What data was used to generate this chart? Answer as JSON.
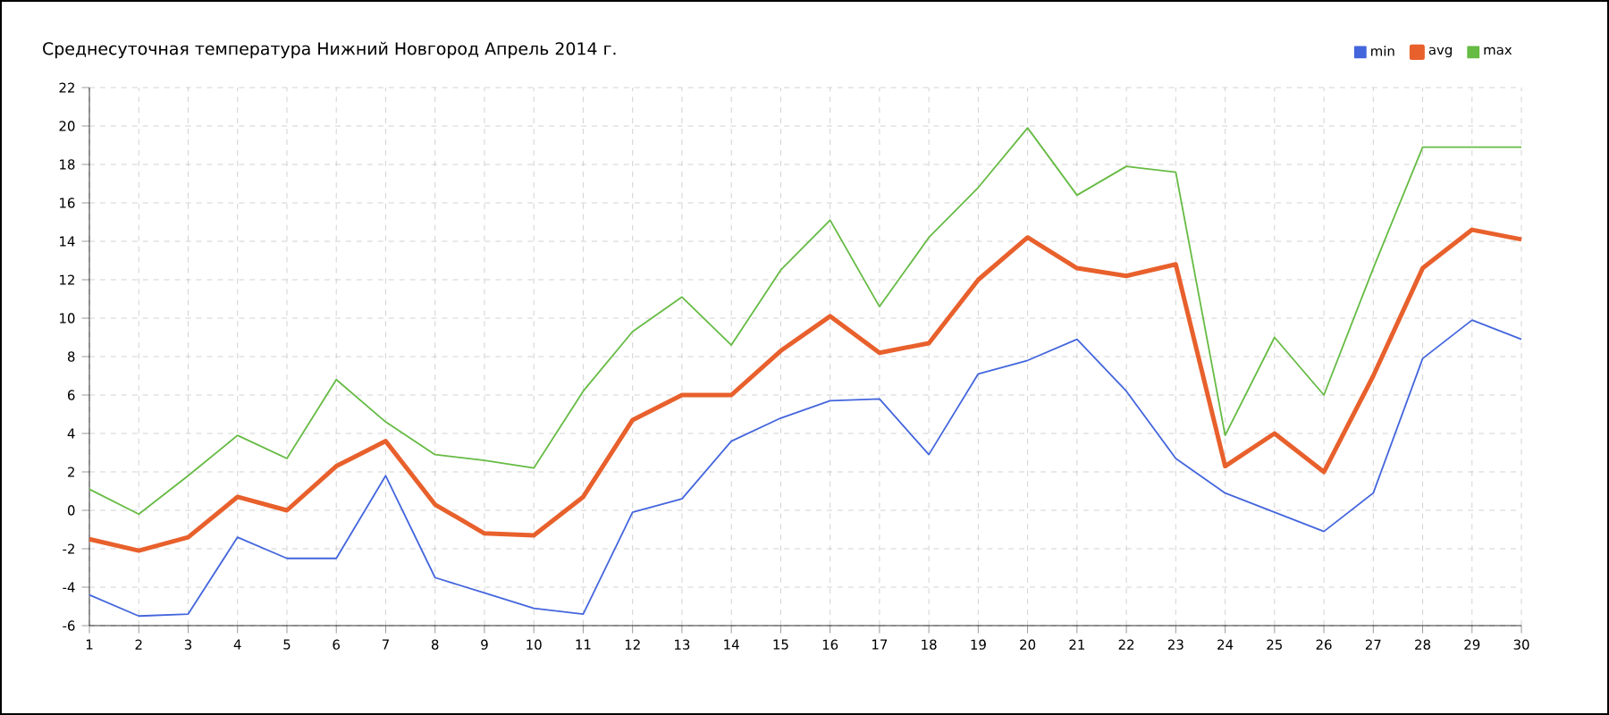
{
  "chart_data": {
    "type": "line",
    "title": "Среднесуточная температура Нижний Новгород  Апрель 2014 г.",
    "categories": [
      "1",
      "2",
      "3",
      "4",
      "5",
      "6",
      "7",
      "8",
      "9",
      "10",
      "11",
      "12",
      "13",
      "14",
      "15",
      "16",
      "17",
      "18",
      "19",
      "20",
      "21",
      "22",
      "23",
      "24",
      "25",
      "26",
      "27",
      "28",
      "29",
      "30"
    ],
    "series": [
      {
        "name": "min",
        "color": "#4466dd",
        "values": [
          -4.4,
          -5.5,
          -5.4,
          -1.4,
          -2.5,
          -2.5,
          1.8,
          -3.5,
          -4.3,
          -5.1,
          -5.4,
          -0.1,
          0.6,
          3.6,
          4.8,
          5.7,
          5.8,
          2.9,
          7.1,
          7.8,
          8.9,
          6.2,
          2.7,
          0.9,
          -0.1,
          -1.1,
          0.9,
          7.9,
          9.9,
          8.9
        ]
      },
      {
        "name": "avg",
        "color": "#e8602c",
        "values": [
          -1.5,
          -2.1,
          -1.4,
          0.7,
          0,
          2.3,
          3.6,
          0.3,
          -1.2,
          -1.3,
          0.7,
          4.7,
          6.0,
          6.0,
          8.3,
          10.1,
          8.2,
          8.7,
          12.0,
          14.2,
          12.6,
          12.2,
          12.8,
          2.3,
          4.0,
          2.0,
          7.0,
          12.6,
          14.6,
          14.1
        ]
      },
      {
        "name": "max",
        "color": "#66bb44",
        "values": [
          1.1,
          -0.2,
          1.8,
          3.9,
          2.7,
          6.8,
          4.6,
          2.9,
          2.6,
          2.2,
          6.2,
          9.3,
          11.1,
          8.6,
          12.5,
          15.1,
          10.6,
          14.2,
          16.8,
          19.9,
          16.4,
          17.9,
          17.6,
          3.9,
          9.0,
          6.0,
          12.6,
          18.9,
          18.9,
          18.9
        ]
      }
    ],
    "ylim": [
      -6,
      22
    ],
    "yticks": [
      -6,
      -4,
      -2,
      0,
      2,
      4,
      6,
      8,
      10,
      12,
      14,
      16,
      18,
      20,
      22
    ],
    "grid": true,
    "legend": "top right",
    "marker": "none",
    "line_style": "solid"
  }
}
